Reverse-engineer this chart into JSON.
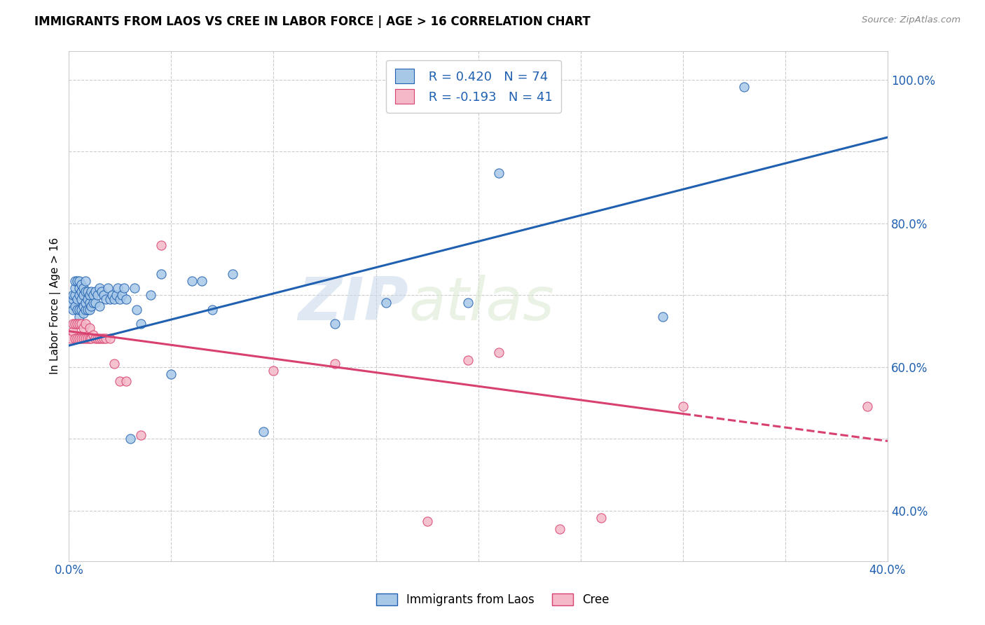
{
  "title": "IMMIGRANTS FROM LAOS VS CREE IN LABOR FORCE | AGE > 16 CORRELATION CHART",
  "source": "Source: ZipAtlas.com",
  "ylabel": "In Labor Force | Age > 16",
  "xlim": [
    0.0,
    0.4
  ],
  "ylim": [
    0.33,
    1.04
  ],
  "x_ticks": [
    0.0,
    0.05,
    0.1,
    0.15,
    0.2,
    0.25,
    0.3,
    0.35,
    0.4
  ],
  "x_tick_labels": [
    "0.0%",
    "",
    "",
    "",
    "",
    "",
    "",
    "",
    "40.0%"
  ],
  "y_ticks_right": [
    0.4,
    0.5,
    0.6,
    0.7,
    0.8,
    0.9,
    1.0
  ],
  "y_tick_labels_right": [
    "40.0%",
    "",
    "60.0%",
    "",
    "80.0%",
    "",
    "100.0%"
  ],
  "legend_r_blue": "R = 0.420",
  "legend_n_blue": "N = 74",
  "legend_r_pink": "R = -0.193",
  "legend_n_pink": "N = 41",
  "blue_color": "#a8c8e8",
  "pink_color": "#f4b8c8",
  "trendline_blue": "#2060b0",
  "trendline_pink": "#d84070",
  "watermark_zip": "ZIP",
  "watermark_atlas": "atlas",
  "blue_scatter_x": [
    0.001,
    0.002,
    0.002,
    0.002,
    0.003,
    0.003,
    0.003,
    0.003,
    0.004,
    0.004,
    0.004,
    0.005,
    0.005,
    0.005,
    0.005,
    0.005,
    0.006,
    0.006,
    0.006,
    0.006,
    0.007,
    0.007,
    0.007,
    0.007,
    0.008,
    0.008,
    0.008,
    0.008,
    0.009,
    0.009,
    0.009,
    0.01,
    0.01,
    0.01,
    0.011,
    0.011,
    0.012,
    0.012,
    0.013,
    0.013,
    0.014,
    0.015,
    0.015,
    0.016,
    0.017,
    0.018,
    0.019,
    0.02,
    0.021,
    0.022,
    0.023,
    0.024,
    0.025,
    0.026,
    0.027,
    0.028,
    0.03,
    0.032,
    0.033,
    0.035,
    0.04,
    0.045,
    0.05,
    0.06,
    0.065,
    0.07,
    0.08,
    0.095,
    0.13,
    0.155,
    0.195,
    0.21,
    0.29,
    0.33
  ],
  "blue_scatter_y": [
    0.69,
    0.68,
    0.695,
    0.7,
    0.685,
    0.7,
    0.71,
    0.72,
    0.68,
    0.695,
    0.72,
    0.67,
    0.68,
    0.7,
    0.71,
    0.72,
    0.68,
    0.695,
    0.705,
    0.715,
    0.675,
    0.685,
    0.7,
    0.71,
    0.68,
    0.69,
    0.705,
    0.72,
    0.68,
    0.695,
    0.705,
    0.68,
    0.69,
    0.7,
    0.685,
    0.705,
    0.69,
    0.7,
    0.69,
    0.705,
    0.7,
    0.685,
    0.71,
    0.705,
    0.7,
    0.695,
    0.71,
    0.695,
    0.7,
    0.695,
    0.7,
    0.71,
    0.695,
    0.7,
    0.71,
    0.695,
    0.5,
    0.71,
    0.68,
    0.66,
    0.7,
    0.73,
    0.59,
    0.72,
    0.72,
    0.68,
    0.73,
    0.51,
    0.66,
    0.69,
    0.69,
    0.87,
    0.67,
    0.99
  ],
  "pink_scatter_x": [
    0.001,
    0.002,
    0.002,
    0.003,
    0.003,
    0.004,
    0.004,
    0.005,
    0.005,
    0.006,
    0.006,
    0.007,
    0.007,
    0.008,
    0.008,
    0.009,
    0.01,
    0.01,
    0.011,
    0.012,
    0.013,
    0.014,
    0.015,
    0.016,
    0.017,
    0.018,
    0.02,
    0.022,
    0.025,
    0.028,
    0.035,
    0.045,
    0.1,
    0.13,
    0.175,
    0.195,
    0.21,
    0.24,
    0.26,
    0.3,
    0.39
  ],
  "pink_scatter_y": [
    0.64,
    0.65,
    0.66,
    0.64,
    0.66,
    0.64,
    0.66,
    0.64,
    0.66,
    0.64,
    0.66,
    0.64,
    0.655,
    0.64,
    0.66,
    0.64,
    0.64,
    0.655,
    0.64,
    0.645,
    0.64,
    0.64,
    0.64,
    0.64,
    0.64,
    0.64,
    0.64,
    0.605,
    0.58,
    0.58,
    0.505,
    0.77,
    0.595,
    0.605,
    0.385,
    0.61,
    0.62,
    0.375,
    0.39,
    0.545,
    0.545
  ],
  "trendline_blue_x0": 0.0,
  "trendline_blue_y0": 0.63,
  "trendline_blue_x1": 0.4,
  "trendline_blue_y1": 0.92,
  "trendline_pink_x0": 0.0,
  "trendline_pink_y0": 0.65,
  "trendline_pink_x1": 0.3,
  "trendline_pink_y1": 0.535,
  "trendline_pink_dash_x0": 0.3,
  "trendline_pink_dash_y0": 0.535,
  "trendline_pink_dash_x1": 0.4,
  "trendline_pink_dash_y1": 0.497
}
